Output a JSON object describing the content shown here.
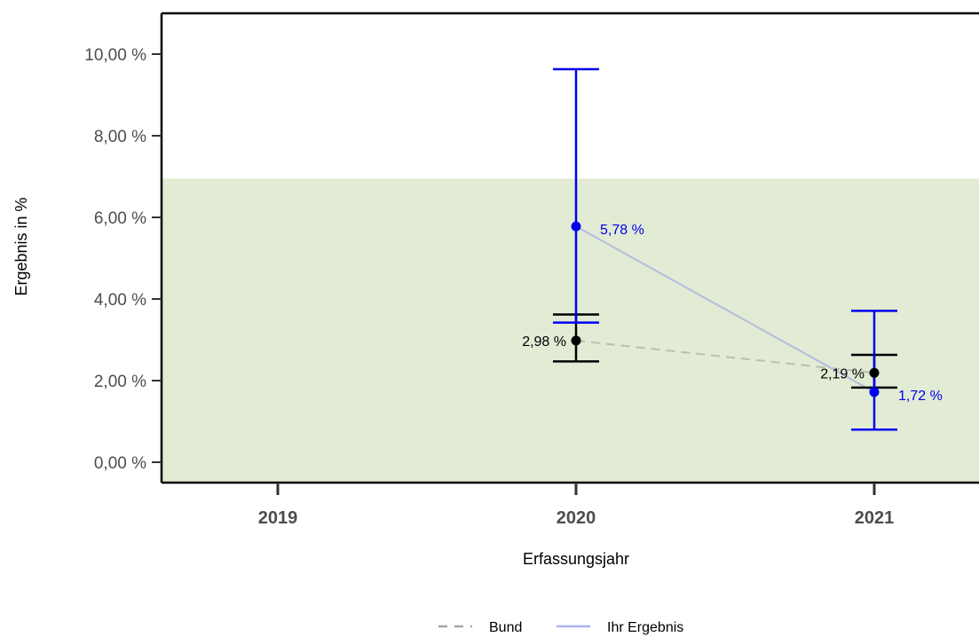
{
  "chart_data": {
    "type": "line",
    "xlabel": "Erfassungsjahr",
    "ylabel": "Ergebnis in %",
    "categories": [
      "2019",
      "2020",
      "2021"
    ],
    "ylim": [
      -0.3,
      10.6
    ],
    "y_ticks": [
      0,
      2,
      4,
      6,
      8,
      10
    ],
    "y_tick_labels": [
      "0,00 %",
      "2,00 %",
      "4,00 %",
      "6,00 %",
      "8,00 %",
      "10,00 %"
    ],
    "reference_range": {
      "from": -0.3,
      "to": 6.95,
      "color": "#e2ebd4"
    },
    "series": [
      {
        "name": "Bund",
        "color": "#000000",
        "line_color": "#b5c2ad",
        "dash": true,
        "points": [
          {
            "x": "2020",
            "y": 2.98,
            "ci_low": 2.47,
            "ci_high": 3.62,
            "label": "2,98 %"
          },
          {
            "x": "2021",
            "y": 2.19,
            "ci_low": 1.83,
            "ci_high": 2.63,
            "label": "2,19 %"
          }
        ]
      },
      {
        "name": "Ihr Ergebnis",
        "color": "#0000ee",
        "line_color": "#b4bbe0",
        "dash": false,
        "points": [
          {
            "x": "2020",
            "y": 5.78,
            "ci_low": 3.42,
            "ci_high": 9.63,
            "label": "5,78 %"
          },
          {
            "x": "2021",
            "y": 1.72,
            "ci_low": 0.8,
            "ci_high": 3.71,
            "label": "1,72 %"
          }
        ]
      }
    ],
    "legend": {
      "placement": "bottom",
      "items": [
        {
          "label": "Bund",
          "color": "#a6a6a6",
          "dash": true
        },
        {
          "label": "Ihr Ergebnis",
          "color": "#a9b3f2",
          "dash": false
        }
      ]
    },
    "grid": false
  }
}
